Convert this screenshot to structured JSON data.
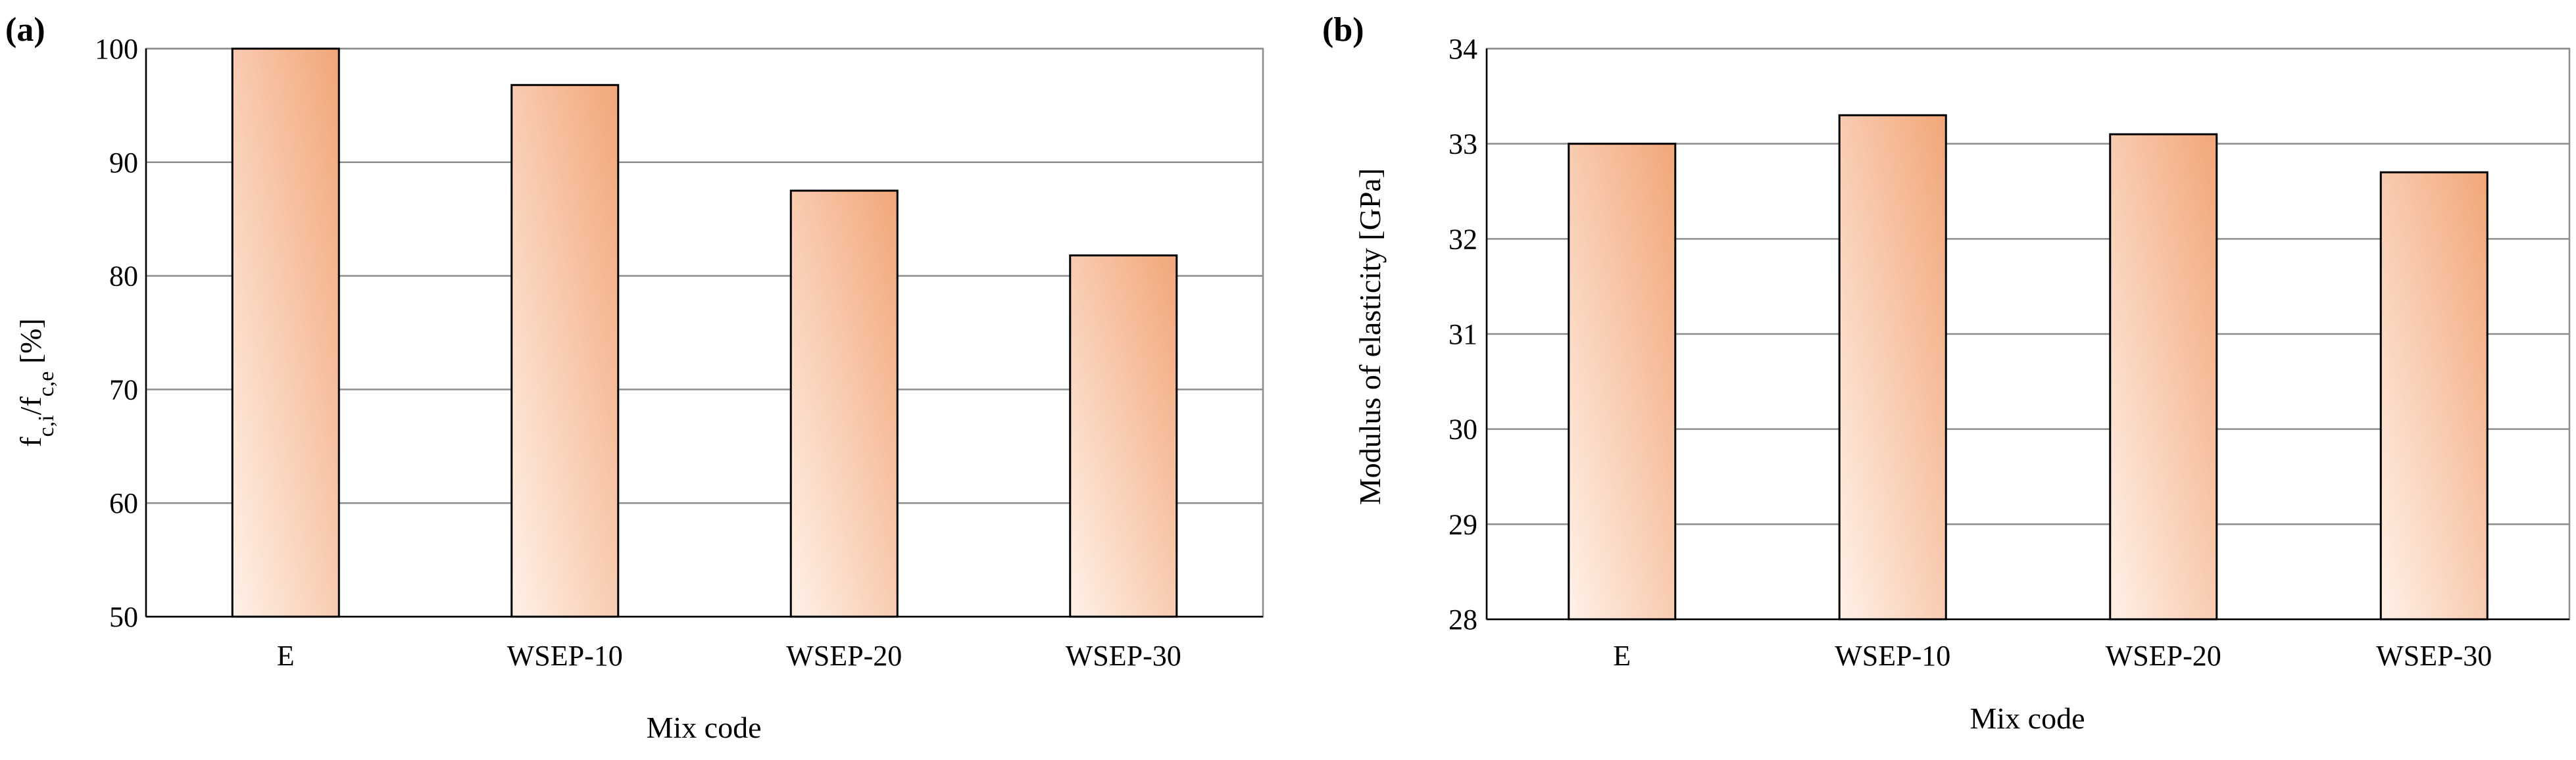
{
  "chart_data": [
    {
      "panel_label": "(a)",
      "type": "bar",
      "categories": [
        "E",
        "WSEP-10",
        "WSEP-20",
        "WSEP-30"
      ],
      "values": [
        100,
        96.8,
        87.5,
        81.8
      ],
      "ylim": [
        50,
        100
      ],
      "yticks": [
        "50",
        "60",
        "70",
        "80",
        "90",
        "100"
      ],
      "ylabel_parts": [
        "f",
        "c,i",
        "/f",
        "c,e",
        " [%]"
      ],
      "xlabel": "Mix code",
      "bar_color_light": "#fff1e8",
      "bar_color_dark": "#f2a679"
    },
    {
      "panel_label": "(b)",
      "type": "bar",
      "categories": [
        "E",
        "WSEP-10",
        "WSEP-20",
        "WSEP-30"
      ],
      "values": [
        33.0,
        33.3,
        33.1,
        32.7
      ],
      "ylim": [
        28,
        34
      ],
      "yticks": [
        "28",
        "29",
        "30",
        "31",
        "32",
        "33",
        "34"
      ],
      "ylabel": "Modulus of elasticity [GPa]",
      "xlabel": "Mix code",
      "bar_color_light": "#fff1e8",
      "bar_color_dark": "#f2a679"
    }
  ]
}
